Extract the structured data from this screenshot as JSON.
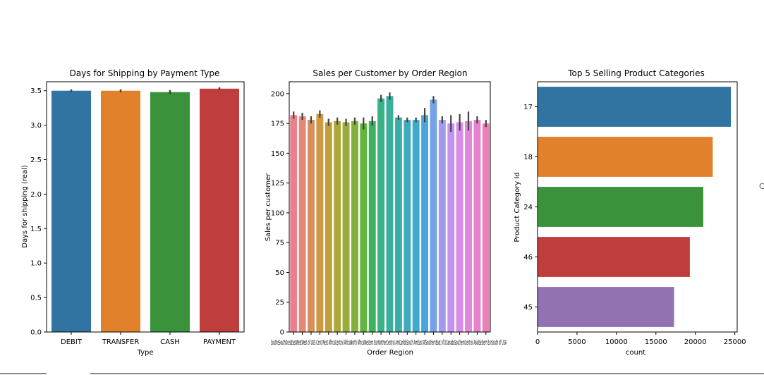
{
  "chart_data": [
    {
      "type": "bar",
      "title": "Days for Shipping by Payment Type",
      "xlabel": "Type",
      "ylabel": "Days for shipping (real)",
      "ylim": [
        0,
        3.63
      ],
      "yticks": [
        "0.0",
        "0.5",
        "1.0",
        "1.5",
        "2.0",
        "2.5",
        "3.0",
        "3.5"
      ],
      "categories": [
        "DEBIT",
        "TRANSFER",
        "CASH",
        "PAYMENT"
      ],
      "values": [
        3.5,
        3.5,
        3.48,
        3.53
      ],
      "errors": [
        0.02,
        0.02,
        0.03,
        0.02
      ],
      "colors": [
        "#3274a1",
        "#e1812c",
        "#3a923a",
        "#c03d3e"
      ],
      "grid": false
    },
    {
      "type": "bar",
      "title": "Sales per Customer by Order Region",
      "xlabel": "Order Region",
      "ylabel": "Sales per customer",
      "ylim": [
        0,
        210
      ],
      "yticks": [
        "0",
        "25",
        "50",
        "75",
        "100",
        "125",
        "150",
        "175",
        "200"
      ],
      "categories": [
        "Southeast Asia",
        "South Asia",
        "Oceania",
        "Eastern Asia",
        "West Asia",
        "West of USA",
        "US Center",
        "West Africa",
        "Central Africa",
        "North Africa",
        "Western Europe",
        "Northern Europe",
        "Central America",
        "Caribbean",
        "South America",
        "East Africa",
        "Southern Europe",
        "East of USA",
        "Canada",
        "Southern Africa",
        "Central Asia",
        "Eastern Europe",
        "South of USA"
      ],
      "values": [
        182,
        181,
        178,
        183,
        176,
        177,
        176,
        177,
        175,
        177,
        196,
        198,
        180,
        178,
        178,
        182,
        195,
        178,
        175,
        176,
        177,
        178,
        175
      ],
      "errors": [
        3,
        3,
        3,
        3,
        3,
        3,
        3,
        3,
        5,
        4,
        3,
        3,
        2,
        2,
        2,
        6,
        3,
        3,
        7,
        7,
        8,
        3,
        3
      ],
      "tick_labels_text": "SoutheSouthOceaEastWestWest of UUS Cent West AfricaCentral AfricaNorth AfricaWestern EurNortherCentral AmCaribbSouth AmEast AfSouthernEast of UCanadaSouthernCentral AsiaEastern EurSouth of USA",
      "colors": [
        "#e8818e",
        "#e48876",
        "#d98f5c",
        "#cb9a43",
        "#bd9f3c",
        "#aea63a",
        "#9aab3a",
        "#84b03b",
        "#62b53e",
        "#3cb25d",
        "#39b285",
        "#3aaf9c",
        "#3baeab",
        "#3dabbb",
        "#3fa9cc",
        "#49a6dc",
        "#76a1e6",
        "#a499ed",
        "#c493ef",
        "#d88dea",
        "#e285dd",
        "#e782cf",
        "#e881b4"
      ],
      "grid": false
    },
    {
      "type": "bar",
      "orientation": "horizontal",
      "title": "Top 5 Selling Product Categories",
      "xlabel": "count",
      "ylabel": "Product Category Id",
      "xlim": [
        0,
        25300
      ],
      "xticks": [
        "0",
        "5000",
        "10000",
        "15000",
        "20000",
        "25000"
      ],
      "categories": [
        "17",
        "18",
        "24",
        "46",
        "45"
      ],
      "values": [
        24500,
        22200,
        21000,
        19300,
        17300
      ],
      "colors": [
        "#3274a1",
        "#e1812c",
        "#3a923a",
        "#c03d3e",
        "#9372b2"
      ],
      "grid": false
    }
  ],
  "stray_glyph": "C"
}
